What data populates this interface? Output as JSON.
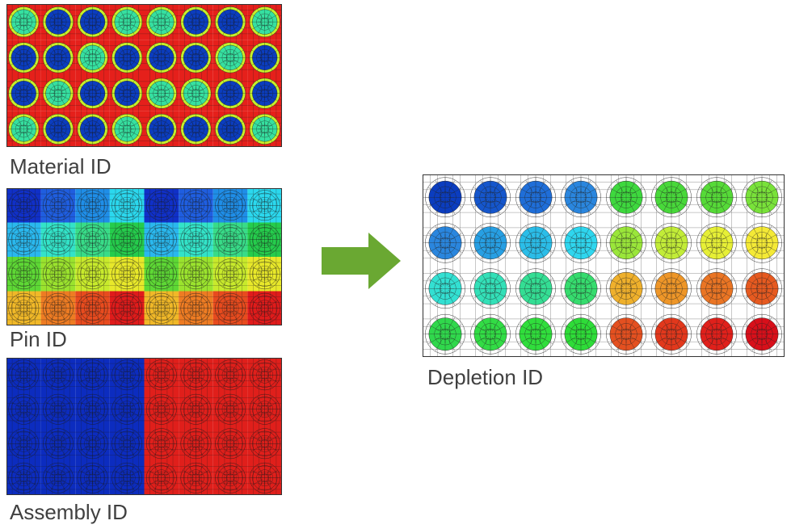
{
  "panels": {
    "material": {
      "caption": "Material ID",
      "colors": {
        "background": "#e5201b",
        "ring": "#c6ef2a",
        "fuel_a": "#36e0a0",
        "fuel_b": "#0b3dbf"
      },
      "fuel_pattern": [
        [
          "a",
          "b",
          "b",
          "a",
          "a",
          "b",
          "b",
          "a"
        ],
        [
          "b",
          "b",
          "a",
          "b",
          "b",
          "b",
          "a",
          "b"
        ],
        [
          "b",
          "a",
          "b",
          "b",
          "a",
          "a",
          "b",
          "b"
        ],
        [
          "a",
          "b",
          "b",
          "a",
          "b",
          "b",
          "b",
          "a"
        ]
      ]
    },
    "pin": {
      "caption": "Pin ID",
      "colors": [
        [
          "#1030c8",
          "#1f5ee0",
          "#1f8ee8",
          "#2bd8ee",
          "#1030c8",
          "#1f5ee0",
          "#1f8ee8",
          "#2bd8ee"
        ],
        [
          "#2ab8ee",
          "#33e3c8",
          "#38dc88",
          "#25cc4c",
          "#2ab8ee",
          "#33e3c8",
          "#38dc88",
          "#25cc4c"
        ],
        [
          "#5ed835",
          "#9be32e",
          "#c8ea2c",
          "#e8e82a",
          "#5ed835",
          "#9be32e",
          "#c8ea2c",
          "#e8e82a"
        ],
        [
          "#f0b828",
          "#ee7c23",
          "#e84b1e",
          "#e01b1b",
          "#f0b828",
          "#ee7c23",
          "#e84b1e",
          "#e01b1b"
        ]
      ]
    },
    "assembly": {
      "caption": "Assembly ID",
      "colors": {
        "left": "#0c2cbf",
        "right": "#e01f1b"
      }
    },
    "depletion": {
      "caption": "Depletion ID",
      "colors": [
        [
          "#0b3dbf",
          "#1556cc",
          "#1f6ed8",
          "#2a86de",
          "#3ed83e",
          "#48d83a",
          "#56da38",
          "#79e23a"
        ],
        [
          "#2a86de",
          "#279fe3",
          "#2bbde8",
          "#2fd6ee",
          "#9ae63a",
          "#c2ec38",
          "#e6ef36",
          "#f4e936"
        ],
        [
          "#33e0d2",
          "#33e0b8",
          "#34de94",
          "#36dc6e",
          "#efb02c",
          "#ee9628",
          "#ea7524",
          "#e65a20"
        ],
        [
          "#30d84c",
          "#32dc45",
          "#30de3c",
          "#2edc38",
          "#e45020",
          "#e2381c",
          "#e0201b",
          "#d80f1a"
        ]
      ]
    }
  },
  "arrow": {
    "color": "#6aa832"
  }
}
